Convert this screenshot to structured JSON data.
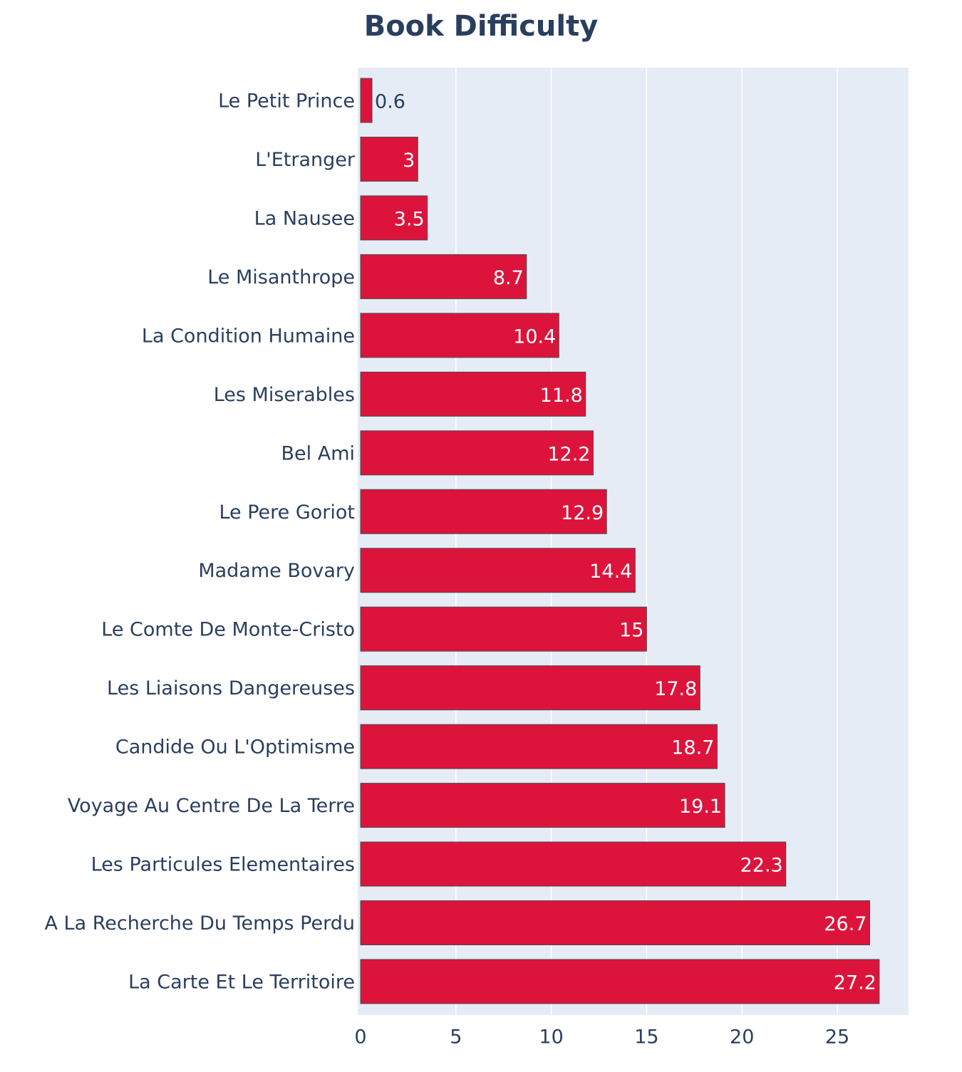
{
  "chart_data": {
    "type": "bar",
    "orientation": "horizontal",
    "title": "Book Difficulty",
    "xlabel": "",
    "ylabel": "",
    "xlim": [
      0,
      28.9
    ],
    "x_ticks": [
      0,
      5,
      10,
      15,
      20,
      25
    ],
    "grid": true,
    "bar_color": "#dc143c",
    "bar_edge_color": "#4d4d4d",
    "plot_bg_color": "#e5ecf6",
    "text_color": "#2a3f5f",
    "categories": [
      "Le Petit Prince",
      "L'Etranger",
      "La Nausee",
      "Le Misanthrope",
      "La Condition Humaine",
      "Les Miserables",
      "Bel Ami",
      "Le Pere Goriot",
      "Madame Bovary",
      "Le Comte De Monte-Cristo",
      "Les Liaisons Dangereuses",
      "Candide Ou L'Optimisme",
      "Voyage Au Centre De La Terre",
      "Les Particules Elementaires",
      "A La Recherche Du Temps Perdu",
      "La Carte Et Le Territoire"
    ],
    "values": [
      0.6,
      3,
      3.5,
      8.7,
      10.4,
      11.8,
      12.2,
      12.9,
      14.4,
      15,
      17.8,
      18.7,
      19.1,
      22.3,
      26.7,
      27.2
    ],
    "value_labels": [
      "0.6",
      "3",
      "3.5",
      "8.7",
      "10.4",
      "11.8",
      "12.2",
      "12.9",
      "14.4",
      "15",
      "17.8",
      "18.7",
      "19.1",
      "22.3",
      "26.7",
      "27.2"
    ]
  }
}
